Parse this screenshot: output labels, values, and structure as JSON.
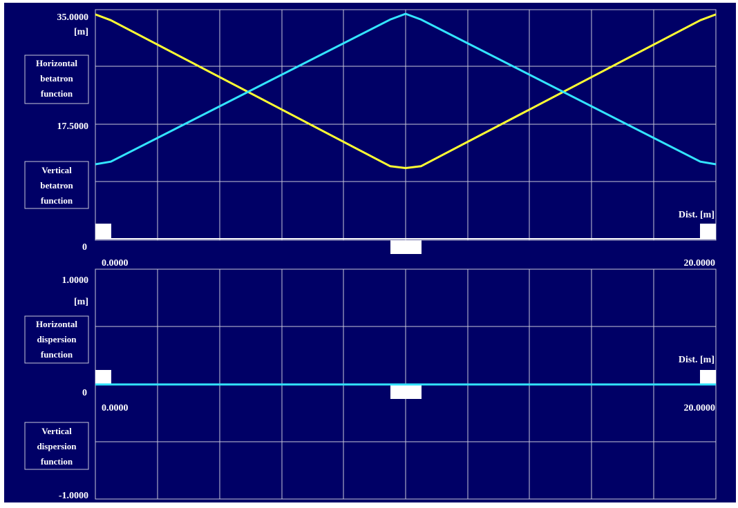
{
  "colors": {
    "background": "#000066",
    "grid": "#c8c8d8",
    "frame": "#c8c8d8",
    "text": "#ffffff",
    "horizontal_series": "#ffff33",
    "vertical_series": "#33e5ff",
    "magnets": "#ffffff"
  },
  "chart_data": [
    {
      "type": "line",
      "grid": true,
      "xlim": [
        0,
        20
      ],
      "ylim": [
        0,
        35
      ],
      "tick_labels": {
        "y_top": "35.0000",
        "y_mid": "17.5000",
        "y_zero": "0",
        "x_start": "0.0000",
        "x_end": "20.0000"
      },
      "unit_label": "[m]",
      "distance_label": "Dist. [m]",
      "legend": {
        "horizontal": [
          "Horizontal",
          "betatron",
          "function"
        ],
        "vertical": [
          "Vertical",
          "betatron",
          "function"
        ]
      },
      "series": [
        {
          "key": "horizontal",
          "x": [
            0,
            0.5,
            9.5,
            10,
            10.5,
            19.5,
            20
          ],
          "y": [
            34.9,
            34.0,
            11.3,
            11.0,
            11.3,
            34.0,
            34.9
          ]
        },
        {
          "key": "vertical",
          "x": [
            0,
            0.5,
            9.5,
            10,
            10.5,
            19.5,
            20
          ],
          "y": [
            11.6,
            12.0,
            34.1,
            35.0,
            34.1,
            12.0,
            11.6
          ]
        }
      ]
    },
    {
      "type": "line",
      "grid": true,
      "xlim": [
        0,
        20
      ],
      "ylim": [
        -1,
        1
      ],
      "tick_labels": {
        "y_top": "1.0000",
        "y_zero": "0",
        "y_bottom": "-1.0000",
        "x_start": "0.0000",
        "x_end": "20.0000"
      },
      "unit_label": "[m]",
      "distance_label": "Dist. [m]",
      "legend": {
        "horizontal": [
          "Horizontal",
          "dispersion",
          "function"
        ],
        "vertical": [
          "Vertical",
          "dispersion",
          "function"
        ]
      },
      "series": [
        {
          "key": "horizontal",
          "x": [
            0,
            20
          ],
          "y": [
            0,
            0
          ]
        },
        {
          "key": "vertical",
          "x": [
            0,
            20
          ],
          "y": [
            0,
            0
          ]
        }
      ]
    }
  ]
}
